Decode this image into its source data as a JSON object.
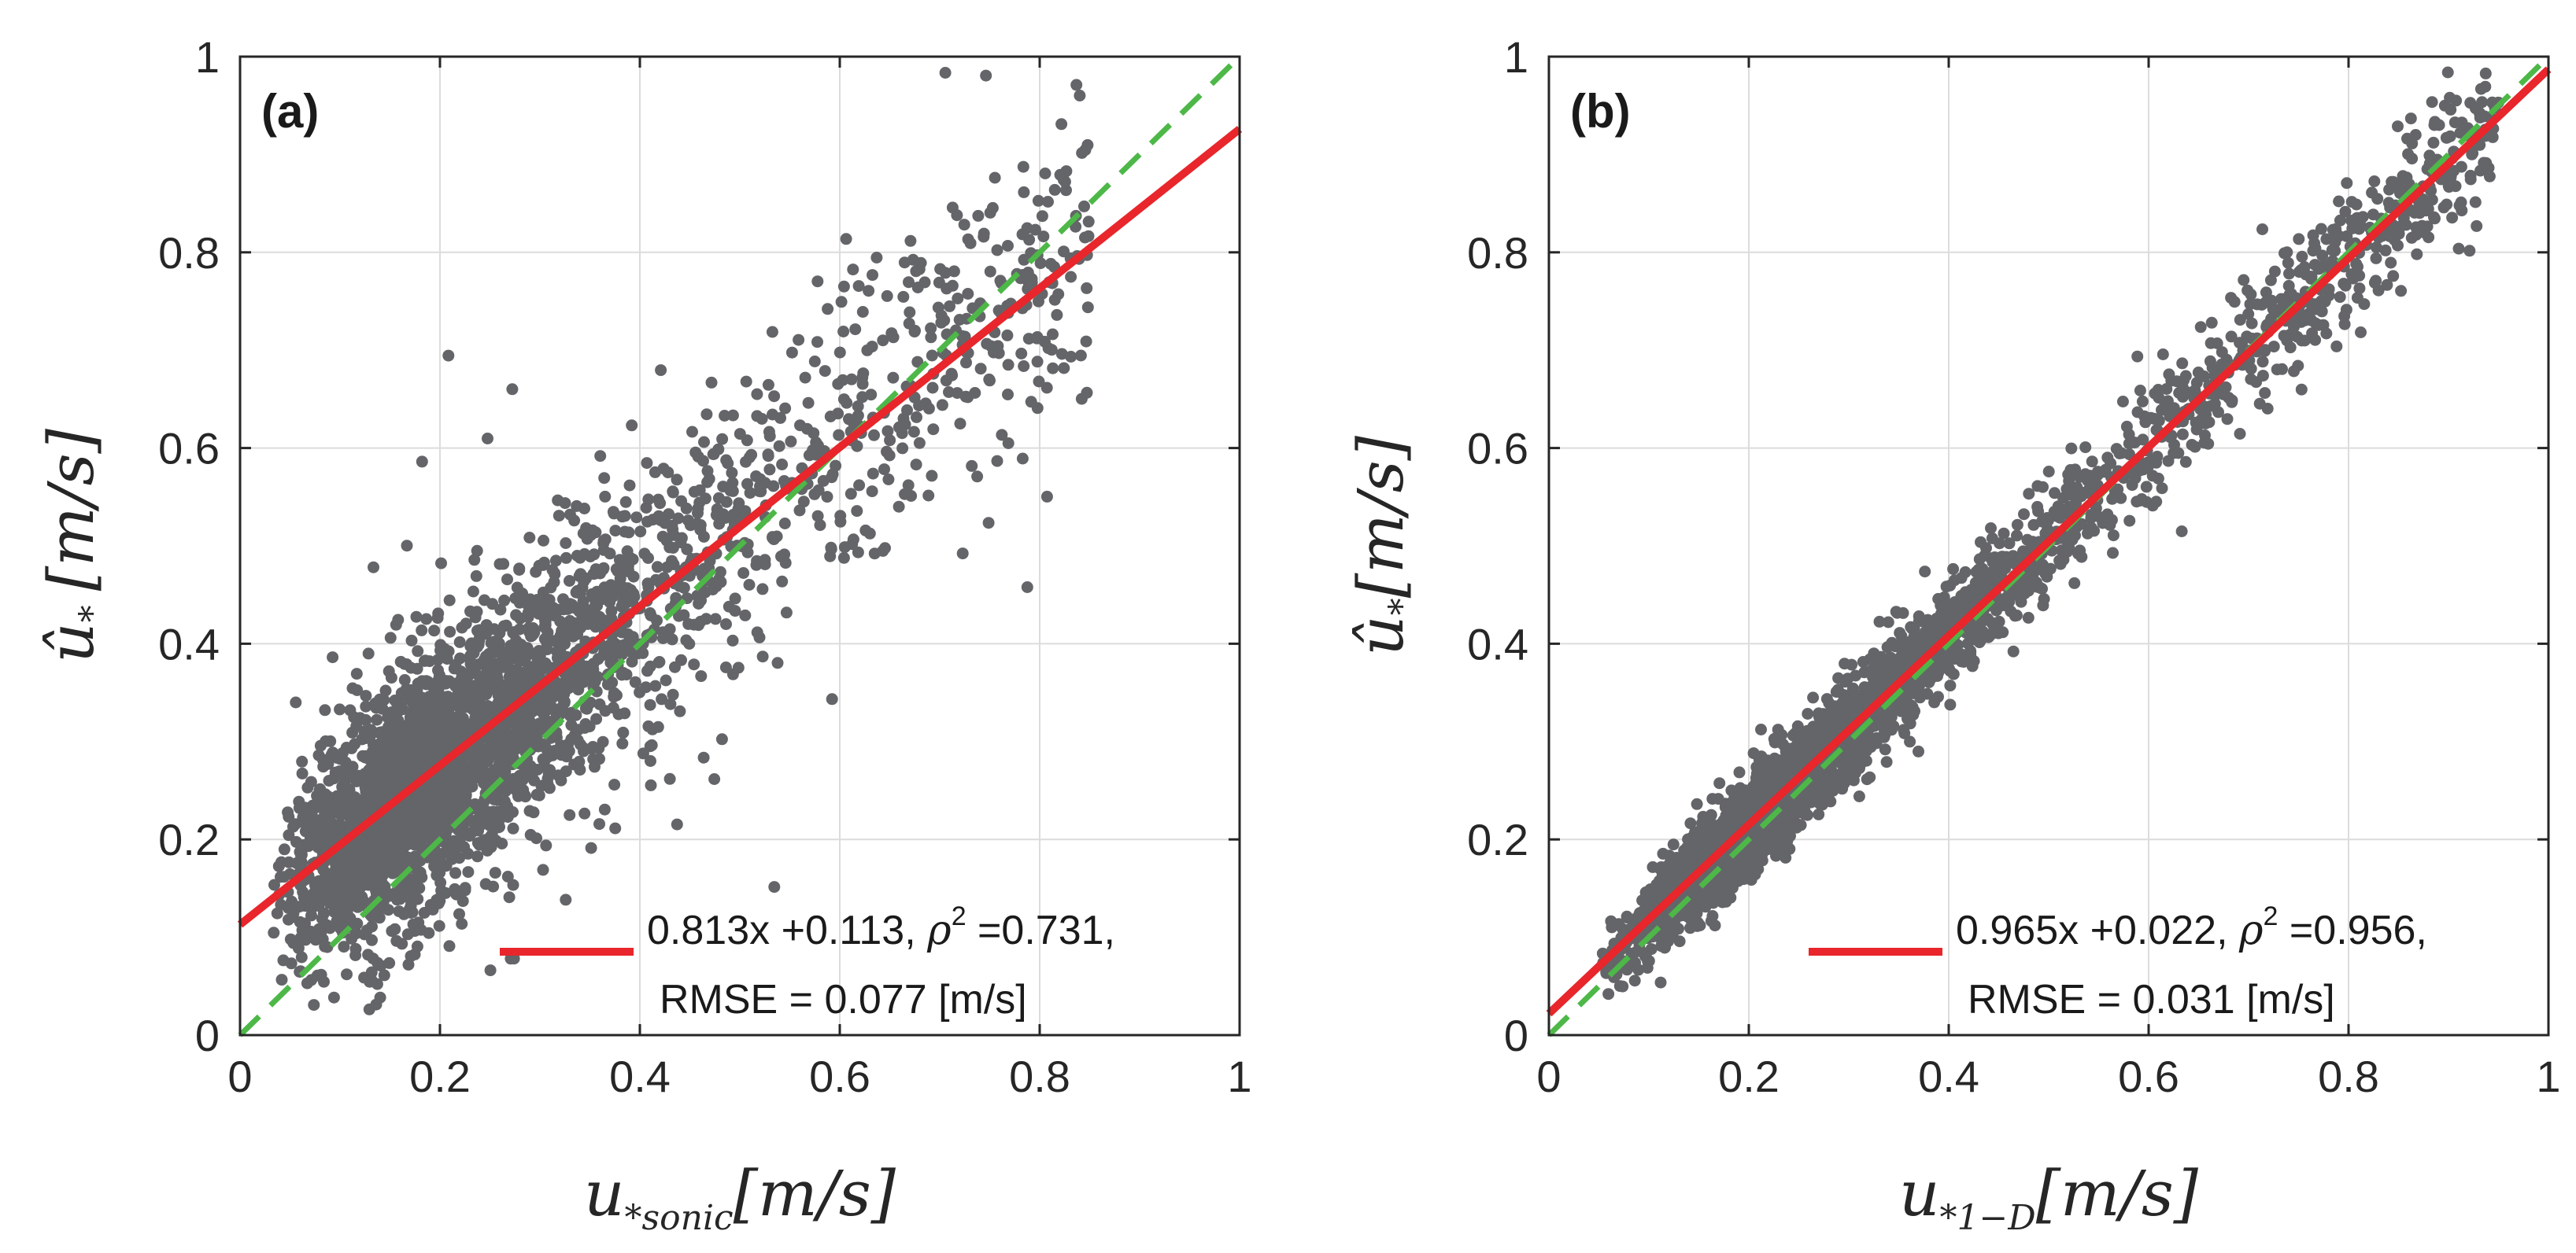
{
  "chart_data": [
    {
      "type": "scatter",
      "panel_label": "(a)",
      "xlabel": {
        "main": "u",
        "sub": "*sonic",
        "unit": "[m/s]"
      },
      "ylabel": {
        "main": "û",
        "sub": "*",
        "unit": "[m/s]"
      },
      "xlim": [
        0,
        1
      ],
      "ylim": [
        0,
        1
      ],
      "x_ticks": [
        0,
        0.2,
        0.4,
        0.6,
        0.8,
        1
      ],
      "x_tick_labels": [
        "0",
        "0.2",
        "0.4",
        "0.6",
        "0.8",
        "1"
      ],
      "y_ticks": [
        0,
        0.2,
        0.4,
        0.6,
        0.8,
        1
      ],
      "y_tick_labels": [
        "0",
        "0.2",
        "0.4",
        "0.6",
        "0.8",
        "1"
      ],
      "grid": true,
      "fit": {
        "slope": 0.813,
        "intercept": 0.113,
        "color": "#e8262b"
      },
      "identity_line": {
        "color": "#4db848"
      },
      "legend": {
        "line1_pre": "0.813x +0.113, ",
        "rho": "ρ",
        "sup": "2",
        "line1_post": " =0.731,",
        "line2": "RMSE = 0.077 [m/s]",
        "position": "bottom-right"
      },
      "scatter_description": {
        "count": 3200,
        "x_center": 0.22,
        "spread": 0.075,
        "color": "#646569"
      }
    },
    {
      "type": "scatter",
      "panel_label": "(b)",
      "xlabel": {
        "main": "u",
        "sub": "*1−D",
        "unit": "[m/s]"
      },
      "ylabel": {
        "main": "û",
        "sub": "*",
        "unit": "[m/s]"
      },
      "xlim": [
        0,
        1
      ],
      "ylim": [
        0,
        1
      ],
      "x_ticks": [
        0,
        0.2,
        0.4,
        0.6,
        0.8,
        1
      ],
      "x_tick_labels": [
        "0",
        "0.2",
        "0.4",
        "0.6",
        "0.8",
        "1"
      ],
      "y_ticks": [
        0,
        0.2,
        0.4,
        0.6,
        0.8,
        1
      ],
      "y_tick_labels": [
        "0",
        "0.2",
        "0.4",
        "0.6",
        "0.8",
        "1"
      ],
      "grid": true,
      "fit": {
        "slope": 0.965,
        "intercept": 0.022,
        "color": "#e8262b"
      },
      "identity_line": {
        "color": "#4db848"
      },
      "legend": {
        "line1_pre": "0.965x +0.022, ",
        "rho": "ρ",
        "sup": "2",
        "line1_post": " =0.956,",
        "line2": "RMSE = 0.031 [m/s]",
        "position": "bottom-right"
      },
      "scatter_description": {
        "count": 3200,
        "x_center": 0.28,
        "spread": 0.025,
        "color": "#646569"
      }
    }
  ]
}
